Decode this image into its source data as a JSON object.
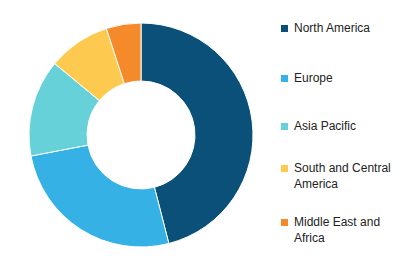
{
  "chart_data": {
    "type": "donut",
    "categories": [
      "North America",
      "Europe",
      "Asia Pacific",
      "South and Central America",
      "Middle East and Africa"
    ],
    "values": [
      46,
      26,
      14,
      9,
      5
    ],
    "colors": [
      "#0b5079",
      "#35b1e6",
      "#66d1d8",
      "#fdc94f",
      "#f58a2b"
    ]
  }
}
